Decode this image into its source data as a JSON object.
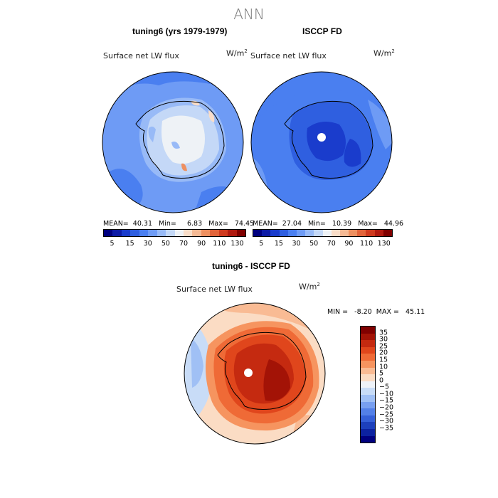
{
  "figure": {
    "season": "ANN"
  },
  "panels": {
    "model": {
      "title": "tuning6 (yrs 1979-1979)",
      "field": "Surface net LW flux",
      "units": "W/m",
      "units_sup": "2",
      "stats": "MEAN=  40.31   Min=     6.83   Max=   74.45"
    },
    "obs": {
      "title": "ISCCP FD",
      "field": "Surface net LW flux",
      "units": "W/m",
      "units_sup": "2",
      "stats": "MEAN=  27.04   Min=   10.39   Max=   44.96"
    },
    "diff": {
      "title": "tuning6 - ISCCP FD",
      "field": "Surface net LW flux",
      "units": "W/m",
      "units_sup": "2",
      "stats": "MIN =   -8.20  MAX =   45.11"
    }
  },
  "chart_data": [
    {
      "type": "heatmap",
      "title": "tuning6 (yrs 1979-1979)",
      "projection": "south polar stereographic",
      "variable": "Surface net LW flux",
      "units": "W/m2",
      "mean": 40.31,
      "min": 6.83,
      "max": 74.45,
      "colorbar": {
        "tick_labels": [
          "5",
          "15",
          "30",
          "50",
          "70",
          "90",
          "110",
          "130"
        ],
        "colors": [
          "#00007f",
          "#0d1ba6",
          "#1a3ccc",
          "#2f5fe0",
          "#4a7ff0",
          "#6e9bf5",
          "#98baf7",
          "#c4d8f7",
          "#eef2f6",
          "#f9ddc8",
          "#f5b994",
          "#ee9060",
          "#e2643a",
          "#cf3a1e",
          "#b01a10",
          "#800000"
        ]
      }
    },
    {
      "type": "heatmap",
      "title": "ISCCP FD",
      "projection": "south polar stereographic",
      "variable": "Surface net LW flux",
      "units": "W/m2",
      "mean": 27.04,
      "min": 10.39,
      "max": 44.96,
      "colorbar": {
        "tick_labels": [
          "5",
          "15",
          "30",
          "50",
          "70",
          "90",
          "110",
          "130"
        ],
        "colors": [
          "#00007f",
          "#0d1ba6",
          "#1a3ccc",
          "#2f5fe0",
          "#4a7ff0",
          "#6e9bf5",
          "#98baf7",
          "#c4d8f7",
          "#eef2f6",
          "#f9ddc8",
          "#f5b994",
          "#ee9060",
          "#e2643a",
          "#cf3a1e",
          "#b01a10",
          "#800000"
        ]
      }
    },
    {
      "type": "heatmap",
      "title": "tuning6 - ISCCP FD",
      "projection": "south polar stereographic",
      "variable": "Surface net LW flux",
      "units": "W/m2",
      "min": -8.2,
      "max": 45.11,
      "colorbar": {
        "tick_labels": [
          "35",
          "30",
          "25",
          "20",
          "15",
          "10",
          "5",
          "0",
          "−5",
          "−10",
          "−15",
          "−20",
          "−25",
          "−30",
          "−35"
        ],
        "colors": [
          "#800000",
          "#a31306",
          "#c52a10",
          "#e0461c",
          "#ef6a36",
          "#f6945f",
          "#f9bb94",
          "#fbdcc4",
          "#eef2f8",
          "#c8dcf7",
          "#a0c0f5",
          "#789ff0",
          "#5380e8",
          "#3560d8",
          "#1d40bc",
          "#0c22a0",
          "#00007f"
        ]
      }
    }
  ],
  "colors": {
    "ice_white": "#eef0f6",
    "title_gray": "#777777"
  }
}
